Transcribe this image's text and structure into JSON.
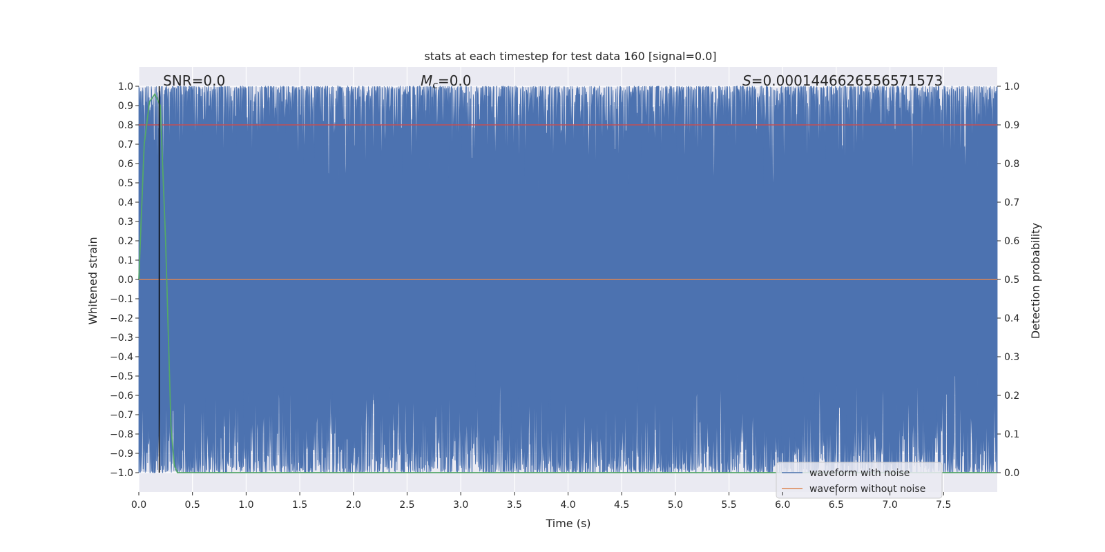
{
  "chart_data": {
    "type": "line",
    "title": "stats at each timestep for test data 160 [signal=0.0]",
    "xlabel": "Time (s)",
    "ylabel": "Whitened strain",
    "ylabel_right": "Detection probability",
    "xlim": [
      0.0,
      8.0
    ],
    "ylim": [
      -1.1,
      1.1
    ],
    "ylim_right": [
      -0.05,
      1.05
    ],
    "x_ticks": [
      0.0,
      0.5,
      1.0,
      1.5,
      2.0,
      2.5,
      3.0,
      3.5,
      4.0,
      4.5,
      5.0,
      5.5,
      6.0,
      6.5,
      7.0,
      7.5
    ],
    "x_tick_labels": [
      "0.0",
      "0.5",
      "1.0",
      "1.5",
      "2.0",
      "2.5",
      "3.0",
      "3.5",
      "4.0",
      "4.5",
      "5.0",
      "5.5",
      "6.0",
      "6.5",
      "7.0",
      "7.5"
    ],
    "y_ticks": [
      1.0,
      0.9,
      0.8,
      0.7,
      0.6,
      0.5,
      0.4,
      0.3,
      0.2,
      0.1,
      0.0,
      -0.1,
      -0.2,
      -0.3,
      -0.4,
      -0.5,
      -0.6,
      -0.7,
      -0.8,
      -0.9,
      -1.0
    ],
    "y_tick_labels": [
      "1.0",
      "0.9",
      "0.8",
      "0.7",
      "0.6",
      "0.5",
      "0.4",
      "0.3",
      "0.2",
      "0.1",
      "0.0",
      "−0.1",
      "−0.2",
      "−0.3",
      "−0.4",
      "−0.5",
      "−0.6",
      "−0.7",
      "−0.8",
      "−0.9",
      "−1.0"
    ],
    "y_right_ticks": [
      1.0,
      0.9,
      0.8,
      0.7,
      0.6,
      0.5,
      0.4,
      0.3,
      0.2,
      0.1,
      0.0
    ],
    "y_right_tick_labels": [
      "1.0",
      "0.9",
      "0.8",
      "0.7",
      "0.6",
      "0.5",
      "0.4",
      "0.3",
      "0.2",
      "0.1",
      "0.0"
    ],
    "grid": true,
    "annotations": [
      {
        "prefix": "SNR",
        "value": "=0.0",
        "x": 0.2
      },
      {
        "prefix": "M",
        "subscript": "c",
        "value": "=0.0",
        "x": 2.6
      },
      {
        "prefix": "S",
        "value": "=0.0001446626556571573",
        "x": 5.6
      }
    ],
    "vline_x": 0.19,
    "series": [
      {
        "name": "waveform with noise",
        "color": "#4c72b0",
        "noise_amplitude_range": [
          -1.0,
          1.0
        ]
      },
      {
        "name": "waveform without noise",
        "color": "#dd8452",
        "constant_value": 0.0
      },
      {
        "color": "#55a868",
        "axis": "right",
        "x": [
          0.0,
          0.05,
          0.1,
          0.15,
          0.2,
          0.25,
          0.3,
          0.33,
          0.36,
          1.0,
          2.0,
          3.0,
          4.0,
          5.0,
          6.0,
          7.0,
          8.0
        ],
        "values": [
          0.5,
          0.85,
          0.96,
          0.98,
          0.95,
          0.6,
          0.12,
          0.02,
          0.0,
          0.0,
          0.0,
          0.0,
          0.0,
          0.0,
          0.0,
          0.0,
          0.0
        ]
      },
      {
        "color": "#c44e52",
        "axis": "right",
        "constant_value": 0.9
      }
    ],
    "legend": {
      "placement": "lower-right"
    }
  }
}
